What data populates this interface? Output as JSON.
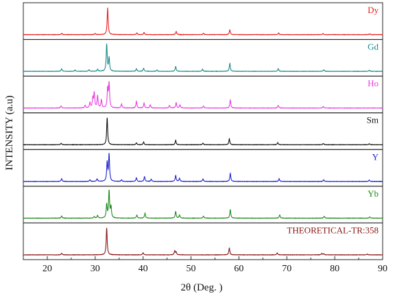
{
  "chart_data": {
    "type": "line",
    "xlabel": "2θ (Deg. )",
    "ylabel": "INTENSITY (a.u)",
    "xlim": [
      15,
      90
    ],
    "xticks": [
      "20",
      "30",
      "40",
      "50",
      "60",
      "70",
      "80",
      "90"
    ],
    "xtick_values": [
      20,
      30,
      40,
      50,
      60,
      70,
      80,
      90
    ],
    "grid": false,
    "legend": "none",
    "series": [
      {
        "name": "Dy",
        "color": "#ee1c1c",
        "baseline": 0,
        "peaks": [
          [
            23.0,
            0.05
          ],
          [
            30.0,
            0.04
          ],
          [
            32.6,
            1.0
          ],
          [
            38.7,
            0.06
          ],
          [
            40.2,
            0.08
          ],
          [
            46.9,
            0.12
          ],
          [
            52.6,
            0.05
          ],
          [
            58.1,
            0.18
          ],
          [
            68.3,
            0.06
          ],
          [
            77.6,
            0.04
          ],
          [
            87.3,
            0.03
          ]
        ]
      },
      {
        "name": "Gd",
        "color": "#1a8a8a",
        "baseline": 0,
        "peaks": [
          [
            23.0,
            0.1
          ],
          [
            25.8,
            0.05
          ],
          [
            28.7,
            0.06
          ],
          [
            30.5,
            0.08
          ],
          [
            32.4,
            1.0
          ],
          [
            32.9,
            0.5
          ],
          [
            38.6,
            0.1
          ],
          [
            40.1,
            0.12
          ],
          [
            42.9,
            0.05
          ],
          [
            46.8,
            0.18
          ],
          [
            52.4,
            0.08
          ],
          [
            58.1,
            0.3
          ],
          [
            68.2,
            0.1
          ],
          [
            77.7,
            0.06
          ],
          [
            87.2,
            0.04
          ]
        ]
      },
      {
        "name": "Ho",
        "color": "#e83ee0",
        "baseline": 0,
        "peaks": [
          [
            22.9,
            0.08
          ],
          [
            27.9,
            0.1
          ],
          [
            28.9,
            0.2
          ],
          [
            29.5,
            0.35
          ],
          [
            29.8,
            0.55
          ],
          [
            30.5,
            0.45
          ],
          [
            31.3,
            0.3
          ],
          [
            32.6,
            0.7
          ],
          [
            32.9,
            0.9
          ],
          [
            35.5,
            0.15
          ],
          [
            38.6,
            0.25
          ],
          [
            40.2,
            0.18
          ],
          [
            41.5,
            0.12
          ],
          [
            45.5,
            0.1
          ],
          [
            46.9,
            0.2
          ],
          [
            47.7,
            0.12
          ],
          [
            52.6,
            0.08
          ],
          [
            58.2,
            0.3
          ],
          [
            68.2,
            0.1
          ],
          [
            77.6,
            0.06
          ]
        ]
      },
      {
        "name": "Sm",
        "color": "#111111",
        "baseline": 0,
        "peaks": [
          [
            22.9,
            0.06
          ],
          [
            32.5,
            1.0
          ],
          [
            38.6,
            0.07
          ],
          [
            40.1,
            0.1
          ],
          [
            46.8,
            0.16
          ],
          [
            52.5,
            0.06
          ],
          [
            58.0,
            0.22
          ],
          [
            68.1,
            0.08
          ],
          [
            77.6,
            0.05
          ],
          [
            87.2,
            0.04
          ]
        ]
      },
      {
        "name": "Y",
        "color": "#1e22cc",
        "baseline": 0,
        "peaks": [
          [
            23.0,
            0.1
          ],
          [
            28.9,
            0.06
          ],
          [
            30.4,
            0.1
          ],
          [
            32.5,
            0.7
          ],
          [
            32.9,
            1.0
          ],
          [
            35.5,
            0.06
          ],
          [
            38.6,
            0.14
          ],
          [
            40.3,
            0.18
          ],
          [
            41.7,
            0.08
          ],
          [
            46.8,
            0.22
          ],
          [
            47.6,
            0.12
          ],
          [
            52.5,
            0.09
          ],
          [
            58.2,
            0.3
          ],
          [
            68.4,
            0.1
          ],
          [
            77.7,
            0.06
          ],
          [
            87.2,
            0.05
          ]
        ]
      },
      {
        "name": "Yb",
        "color": "#1c8a1c",
        "baseline": 0,
        "peaks": [
          [
            23.0,
            0.08
          ],
          [
            29.8,
            0.06
          ],
          [
            30.5,
            0.1
          ],
          [
            32.4,
            0.5
          ],
          [
            32.9,
            1.0
          ],
          [
            33.3,
            0.4
          ],
          [
            38.7,
            0.12
          ],
          [
            40.4,
            0.18
          ],
          [
            46.8,
            0.25
          ],
          [
            47.6,
            0.12
          ],
          [
            52.6,
            0.08
          ],
          [
            58.2,
            0.32
          ],
          [
            68.5,
            0.12
          ],
          [
            77.8,
            0.07
          ],
          [
            87.3,
            0.05
          ]
        ]
      },
      {
        "name": "THEORETICAL-TR:358",
        "color": "#8b1414",
        "baseline": 0,
        "peaks": [
          [
            23.0,
            0.06
          ],
          [
            32.4,
            1.0
          ],
          [
            40.0,
            0.08
          ],
          [
            46.6,
            0.14
          ],
          [
            46.9,
            0.1
          ],
          [
            58.0,
            0.26
          ],
          [
            68.0,
            0.07
          ],
          [
            77.3,
            0.05
          ],
          [
            77.7,
            0.04
          ],
          [
            86.8,
            0.03
          ]
        ]
      }
    ]
  }
}
